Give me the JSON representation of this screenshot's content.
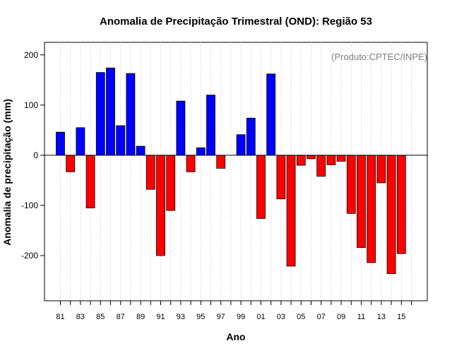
{
  "chart_data": {
    "type": "bar",
    "title": "Anomalia de Precipitação Trimestral (OND): Região 53",
    "xlabel": "Ano",
    "ylabel": "Anomalia de precipitação (mm)",
    "annotation": "(Produto:CPTEC/INPE)",
    "ylim": [
      -290,
      225
    ],
    "yticks": [
      -200,
      -100,
      0,
      100,
      200
    ],
    "grid": "vertical dotted",
    "positive_color": "#0000ff",
    "negative_color": "#ff0000",
    "x_tick_labels": [
      "81",
      "83",
      "85",
      "87",
      "89",
      "91",
      "93",
      "95",
      "97",
      "99",
      "01",
      "03",
      "05",
      "07",
      "09",
      "11",
      "13",
      "15"
    ],
    "categories": [
      "1981",
      "1982",
      "1983",
      "1984",
      "1985",
      "1986",
      "1987",
      "1988",
      "1989",
      "1990",
      "1991",
      "1992",
      "1993",
      "1994",
      "1995",
      "1996",
      "1997",
      "1998",
      "1999",
      "2000",
      "2001",
      "2002",
      "2003",
      "2004",
      "2005",
      "2006",
      "2007",
      "2008",
      "2009",
      "2010",
      "2011",
      "2012",
      "2013",
      "2014",
      "2015"
    ],
    "values": [
      46,
      -33,
      55,
      -105,
      165,
      174,
      59,
      163,
      18,
      -68,
      -200,
      -110,
      108,
      -33,
      15,
      120,
      -26,
      0,
      41,
      74,
      -126,
      162,
      -87,
      -221,
      -20,
      -7,
      -42,
      -19,
      -12,
      -116,
      -184,
      -214,
      -55,
      -236,
      -196
    ]
  }
}
